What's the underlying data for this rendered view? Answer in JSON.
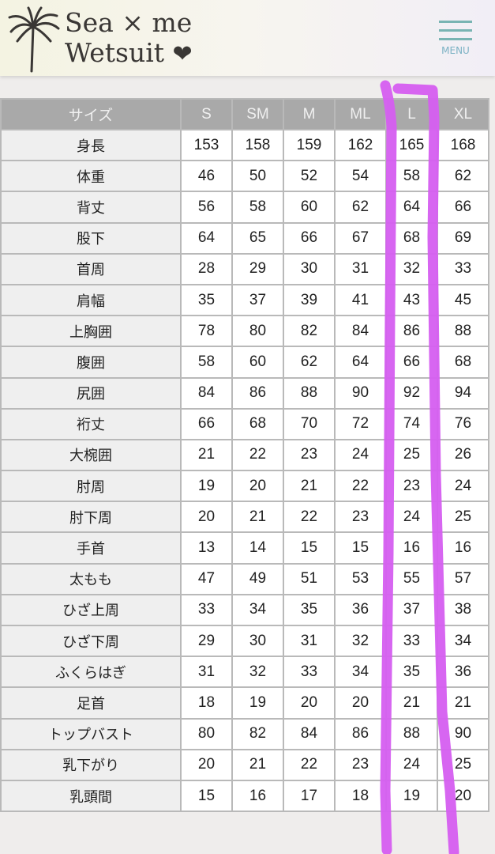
{
  "header": {
    "logo_line1": "Sea × me",
    "logo_line2": "Wetsuit",
    "menu_label": "MENU"
  },
  "table": {
    "headers": [
      "サイズ",
      "S",
      "SM",
      "M",
      "ML",
      "L",
      "XL"
    ],
    "rows": [
      {
        "label": "身長",
        "values": [
          "153",
          "158",
          "159",
          "162",
          "165",
          "168"
        ]
      },
      {
        "label": "体重",
        "values": [
          "46",
          "50",
          "52",
          "54",
          "58",
          "62"
        ]
      },
      {
        "label": "背丈",
        "values": [
          "56",
          "58",
          "60",
          "62",
          "64",
          "66"
        ]
      },
      {
        "label": "股下",
        "values": [
          "64",
          "65",
          "66",
          "67",
          "68",
          "69"
        ]
      },
      {
        "label": "首周",
        "values": [
          "28",
          "29",
          "30",
          "31",
          "32",
          "33"
        ]
      },
      {
        "label": "肩幅",
        "values": [
          "35",
          "37",
          "39",
          "41",
          "43",
          "45"
        ]
      },
      {
        "label": "上胸囲",
        "values": [
          "78",
          "80",
          "82",
          "84",
          "86",
          "88"
        ]
      },
      {
        "label": "腹囲",
        "values": [
          "58",
          "60",
          "62",
          "64",
          "66",
          "68"
        ]
      },
      {
        "label": "尻囲",
        "values": [
          "84",
          "86",
          "88",
          "90",
          "92",
          "94"
        ]
      },
      {
        "label": "裄丈",
        "values": [
          "66",
          "68",
          "70",
          "72",
          "74",
          "76"
        ]
      },
      {
        "label": "大椀囲",
        "values": [
          "21",
          "22",
          "23",
          "24",
          "25",
          "26"
        ]
      },
      {
        "label": "肘周",
        "values": [
          "19",
          "20",
          "21",
          "22",
          "23",
          "24"
        ]
      },
      {
        "label": "肘下周",
        "values": [
          "20",
          "21",
          "22",
          "23",
          "24",
          "25"
        ]
      },
      {
        "label": "手首",
        "values": [
          "13",
          "14",
          "15",
          "15",
          "16",
          "16"
        ]
      },
      {
        "label": "太もも",
        "values": [
          "47",
          "49",
          "51",
          "53",
          "55",
          "57"
        ]
      },
      {
        "label": "ひざ上周",
        "values": [
          "33",
          "34",
          "35",
          "36",
          "37",
          "38"
        ]
      },
      {
        "label": "ひざ下周",
        "values": [
          "29",
          "30",
          "31",
          "32",
          "33",
          "34"
        ]
      },
      {
        "label": "ふくらはぎ",
        "values": [
          "31",
          "32",
          "33",
          "34",
          "35",
          "36"
        ]
      },
      {
        "label": "足首",
        "values": [
          "18",
          "19",
          "20",
          "20",
          "21",
          "21"
        ]
      },
      {
        "label": "トップバスト",
        "values": [
          "80",
          "82",
          "84",
          "86",
          "88",
          "90"
        ]
      },
      {
        "label": "乳下がり",
        "values": [
          "20",
          "21",
          "22",
          "23",
          "24",
          "25"
        ]
      },
      {
        "label": "乳頭間",
        "values": [
          "15",
          "16",
          "17",
          "18",
          "19",
          "20"
        ]
      }
    ]
  },
  "annotation": {
    "highlighted_column": "L",
    "color": "#d55ef0"
  }
}
